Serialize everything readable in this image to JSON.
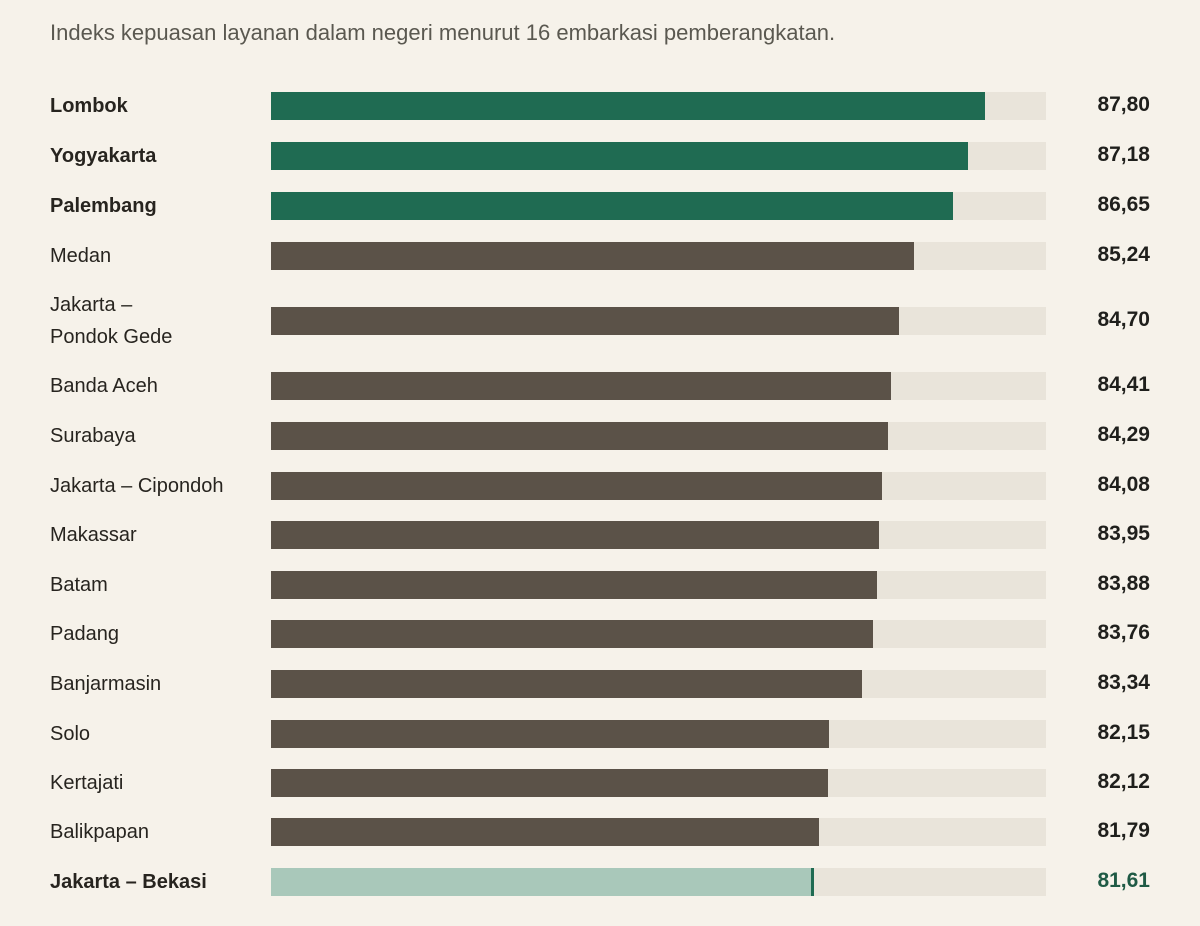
{
  "subtitle": "Indeks kepuasan layanan dalam negeri menurut 16 embarkasi pemberangkatan.",
  "colors": {
    "top": "#1f6b52",
    "default": "#5b5248",
    "lowest": "#a9c8ba",
    "lowest_marker": "#1f6b52",
    "lowest_value": "#1f5a45",
    "track": "#e9e4da"
  },
  "chart_data": {
    "type": "bar",
    "orientation": "horizontal",
    "title": "",
    "subtitle": "Indeks kepuasan layanan dalam negeri menurut 16 embarkasi pemberangkatan.",
    "xlim": [
      62,
      90
    ],
    "categories": [
      "Lombok",
      "Yogyakarta",
      "Palembang",
      "Medan",
      "Jakarta – Pondok Gede",
      "Banda Aceh",
      "Surabaya",
      "Jakarta – Cipondoh",
      "Makassar",
      "Batam",
      "Padang",
      "Banjarmasin",
      "Solo",
      "Kertajati",
      "Balikpapan",
      "Jakarta – Bekasi"
    ],
    "values": [
      87.8,
      87.18,
      86.65,
      85.24,
      84.7,
      84.41,
      84.29,
      84.08,
      83.95,
      83.88,
      83.76,
      83.34,
      82.15,
      82.12,
      81.79,
      81.61
    ],
    "rows": [
      {
        "label": "Lombok",
        "lines": [
          "Lombok"
        ],
        "value": 87.8,
        "display": "87,80",
        "highlight": "top"
      },
      {
        "label": "Yogyakarta",
        "lines": [
          "Yogyakarta"
        ],
        "value": 87.18,
        "display": "87,18",
        "highlight": "top"
      },
      {
        "label": "Palembang",
        "lines": [
          "Palembang"
        ],
        "value": 86.65,
        "display": "86,65",
        "highlight": "top"
      },
      {
        "label": "Medan",
        "lines": [
          "Medan"
        ],
        "value": 85.24,
        "display": "85,24",
        "highlight": "none"
      },
      {
        "label": "Jakarta – Pondok Gede",
        "lines": [
          "Jakarta –",
          "Pondok Gede"
        ],
        "value": 84.7,
        "display": "84,70",
        "highlight": "none"
      },
      {
        "label": "Banda Aceh",
        "lines": [
          "Banda Aceh"
        ],
        "value": 84.41,
        "display": "84,41",
        "highlight": "none"
      },
      {
        "label": "Surabaya",
        "lines": [
          "Surabaya"
        ],
        "value": 84.29,
        "display": "84,29",
        "highlight": "none"
      },
      {
        "label": "Jakarta – Cipondoh",
        "lines": [
          "Jakarta – Cipondoh"
        ],
        "value": 84.08,
        "display": "84,08",
        "highlight": "none"
      },
      {
        "label": "Makassar",
        "lines": [
          "Makassar"
        ],
        "value": 83.95,
        "display": "83,95",
        "highlight": "none"
      },
      {
        "label": "Batam",
        "lines": [
          "Batam"
        ],
        "value": 83.88,
        "display": "83,88",
        "highlight": "none"
      },
      {
        "label": "Padang",
        "lines": [
          "Padang"
        ],
        "value": 83.76,
        "display": "83,76",
        "highlight": "none"
      },
      {
        "label": "Banjarmasin",
        "lines": [
          "Banjarmasin"
        ],
        "value": 83.34,
        "display": "83,34",
        "highlight": "none"
      },
      {
        "label": "Solo",
        "lines": [
          "Solo"
        ],
        "value": 82.15,
        "display": "82,15",
        "highlight": "none"
      },
      {
        "label": "Kertajati",
        "lines": [
          "Kertajati"
        ],
        "value": 82.12,
        "display": "82,12",
        "highlight": "none"
      },
      {
        "label": "Balikpapan",
        "lines": [
          "Balikpapan"
        ],
        "value": 81.79,
        "display": "81,79",
        "highlight": "none"
      },
      {
        "label": "Jakarta – Bekasi",
        "lines": [
          "Jakarta – Bekasi"
        ],
        "value": 81.61,
        "display": "81,61",
        "highlight": "lowest"
      }
    ]
  }
}
